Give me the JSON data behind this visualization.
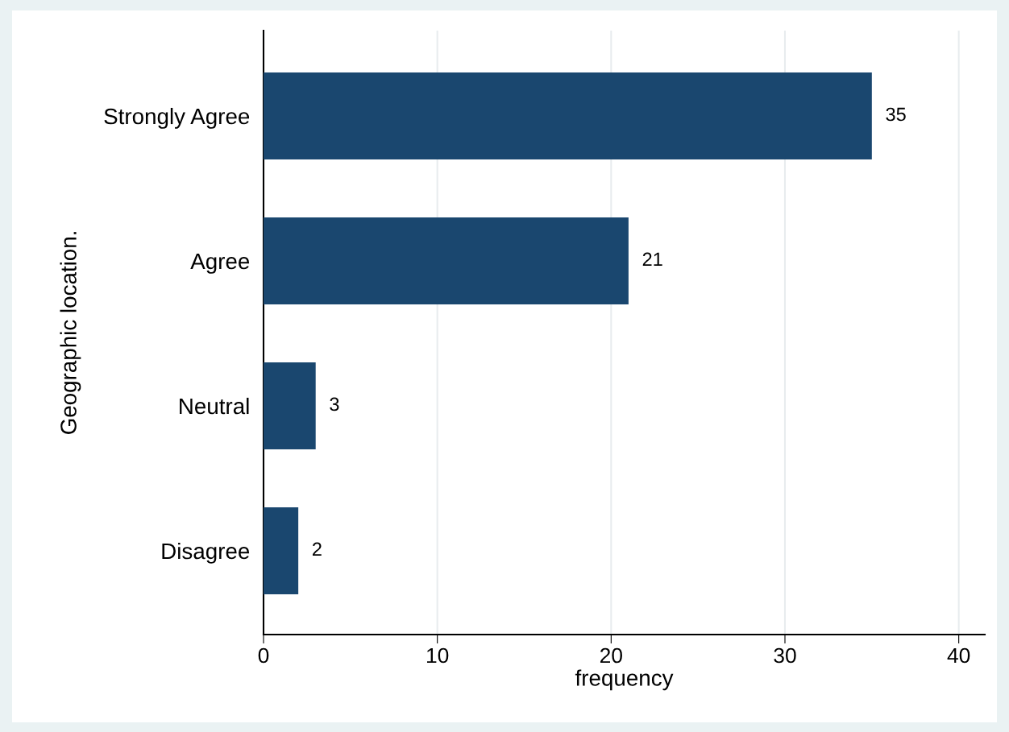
{
  "chart_data": {
    "type": "bar",
    "orientation": "horizontal",
    "xlabel": "frequency",
    "ylabel": "Geographic location.",
    "categories": [
      "Strongly Agree",
      "Agree",
      "Neutral",
      "Disagree"
    ],
    "values": [
      35,
      21,
      3,
      2
    ],
    "color": "#1a476f",
    "xlim": [
      0,
      41.5
    ],
    "xticks": [
      0,
      10,
      20,
      30,
      40
    ],
    "grid": "x",
    "data_labels": true
  }
}
